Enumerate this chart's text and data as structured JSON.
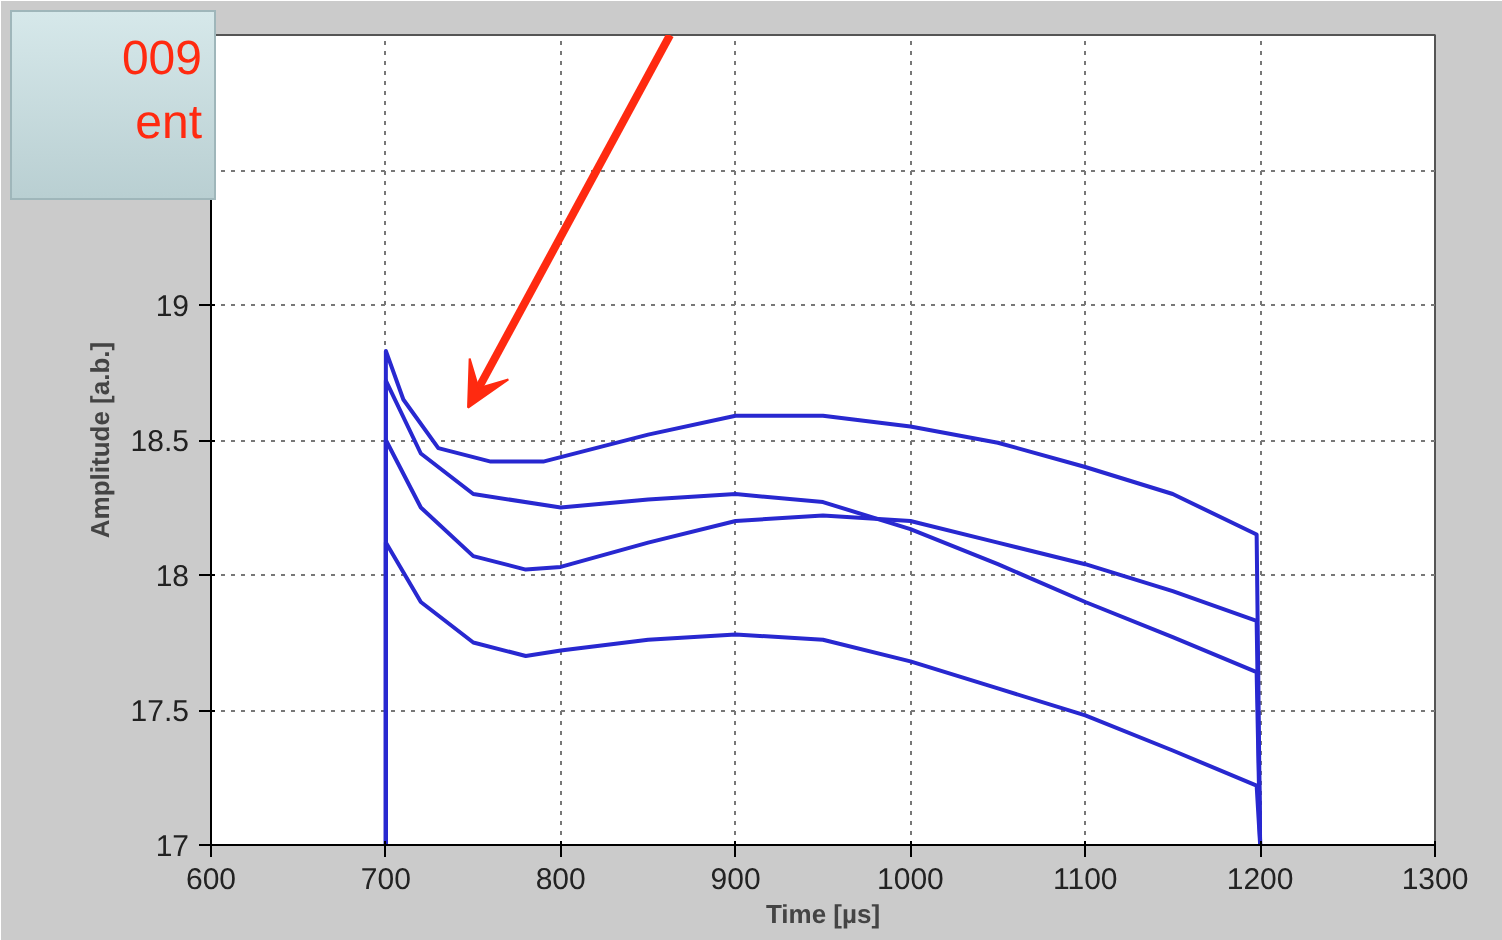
{
  "chart_data": {
    "type": "line",
    "xlabel": "Time [µs]",
    "ylabel": "Amplitude [a.b.]",
    "annotations": [
      "009",
      "ent"
    ],
    "xlim": [
      600,
      1300
    ],
    "ylim": [
      17,
      20
    ],
    "xticks": [
      600,
      700,
      800,
      900,
      1000,
      1100,
      1200,
      1300
    ],
    "yticks": [
      17,
      17.5,
      18,
      18.5,
      19,
      {
        "value": 19.5,
        "label": null
      },
      {
        "value": 20,
        "label": null
      }
    ],
    "grid": true,
    "line_style": "solid",
    "marker": "none",
    "series": [
      {
        "color": "#2828d0",
        "x": [
          700,
          700,
          710,
          730,
          760,
          790,
          820,
          850,
          900,
          950,
          1000,
          1050,
          1100,
          1150,
          1198,
          1200
        ],
        "values": [
          17,
          18.83,
          18.65,
          18.47,
          18.42,
          18.42,
          18.47,
          18.52,
          18.59,
          18.59,
          18.55,
          18.49,
          18.4,
          18.3,
          18.15,
          17
        ]
      },
      {
        "color": "#2828d0",
        "x": [
          700,
          700,
          720,
          750,
          800,
          850,
          900,
          950,
          1000,
          1050,
          1100,
          1150,
          1198,
          1200
        ],
        "values": [
          17,
          18.72,
          18.45,
          18.3,
          18.25,
          18.28,
          18.3,
          18.27,
          18.17,
          18.04,
          17.9,
          17.77,
          17.64,
          17
        ]
      },
      {
        "color": "#2828d0",
        "x": [
          700,
          700,
          720,
          750,
          780,
          800,
          850,
          900,
          950,
          1000,
          1050,
          1100,
          1150,
          1198,
          1200
        ],
        "values": [
          17,
          18.5,
          18.25,
          18.07,
          18.02,
          18.03,
          18.12,
          18.2,
          18.22,
          18.2,
          18.12,
          18.04,
          17.94,
          17.83,
          17
        ]
      },
      {
        "color": "#2828d0",
        "x": [
          700,
          700,
          720,
          750,
          780,
          800,
          850,
          900,
          950,
          1000,
          1050,
          1100,
          1150,
          1198,
          1200
        ],
        "values": [
          17,
          18.12,
          17.9,
          17.75,
          17.7,
          17.72,
          17.76,
          17.78,
          17.76,
          17.68,
          17.58,
          17.48,
          17.35,
          17.22,
          17
        ]
      }
    ]
  }
}
